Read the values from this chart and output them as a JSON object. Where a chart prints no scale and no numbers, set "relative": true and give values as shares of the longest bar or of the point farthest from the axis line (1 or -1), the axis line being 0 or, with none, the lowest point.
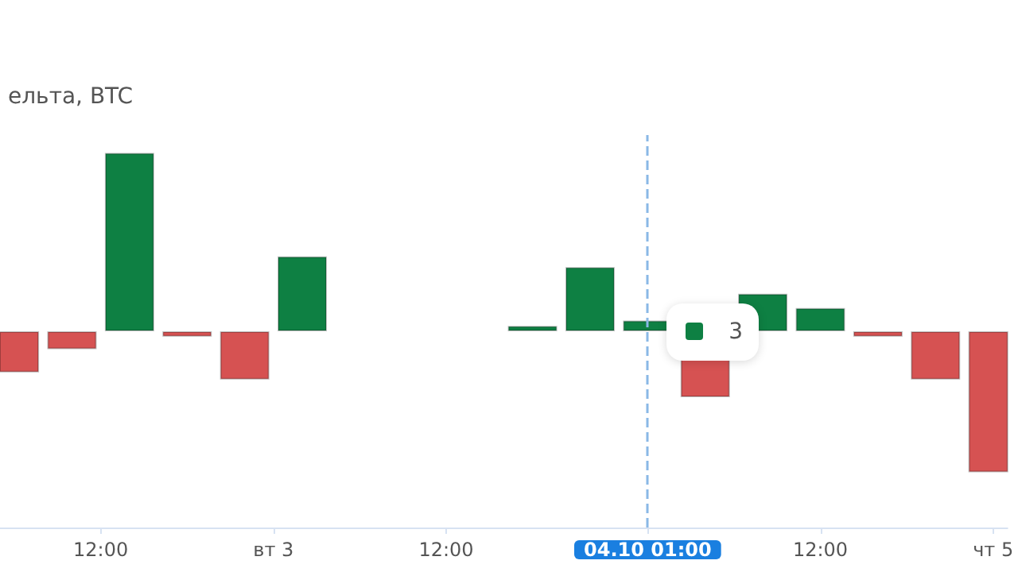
{
  "chart_data": {
    "type": "bar",
    "title": "ельта, BTC",
    "relative": true,
    "categories": [
      null,
      null,
      null,
      "12:00",
      null,
      null,
      null,
      null,
      null,
      "вт 3",
      null,
      null,
      null,
      null,
      null,
      "12:00",
      null,
      null,
      null,
      null,
      null,
      null,
      "04.10 01:00",
      null,
      null,
      null,
      null,
      null,
      "12:00",
      null,
      null,
      null,
      null,
      null,
      "чт 5"
    ],
    "values": [
      -0.23,
      null,
      -0.1,
      null,
      1,
      null,
      -0.03,
      null,
      -0.27,
      null,
      0.42,
      null,
      null,
      null,
      null,
      null,
      null,
      null,
      0.03,
      null,
      0.36,
      null,
      0.06,
      null,
      -0.37,
      null,
      0.21,
      null,
      0.13,
      null,
      -0.03,
      null,
      -0.27,
      null,
      -0.79
    ],
    "colors": [
      "#d65252",
      null,
      "#d65252",
      null,
      "#0e8043",
      null,
      "#d65252",
      null,
      "#d65252",
      null,
      "#0e8043",
      null,
      null,
      null,
      null,
      null,
      null,
      null,
      "#0e8043",
      null,
      "#0e8043",
      null,
      "#0e8043",
      null,
      "#d65252",
      null,
      "#0e8043",
      null,
      "#0e8043",
      null,
      "#d65252",
      null,
      "#d65252",
      null,
      "#d65252"
    ],
    "ref_lines": [
      {
        "axis": "x",
        "value": "04.10 01:00",
        "color": "#8ab8e6",
        "line_style": "dashed"
      }
    ],
    "annotations": [
      "3"
    ],
    "grid": false
  }
}
